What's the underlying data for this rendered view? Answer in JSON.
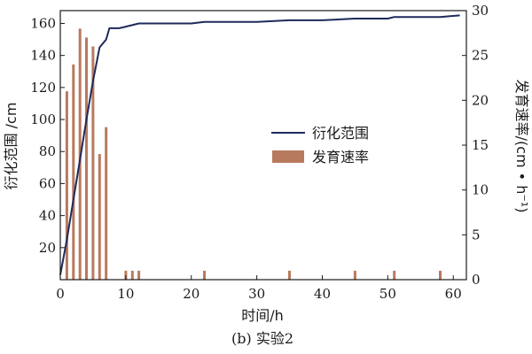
{
  "chart_data": {
    "type": "bar+line",
    "caption": "(b) 实验2",
    "xlabel": "时间/h",
    "ylabel_left": "衍化范围 /cm",
    "ylabel_right": "发育速率/(cm • h⁻¹)",
    "xlim": [
      0,
      62
    ],
    "ylim_left": [
      0,
      168
    ],
    "ylim_right": [
      0,
      30
    ],
    "x_ticks": [
      0,
      10,
      20,
      30,
      40,
      50,
      60
    ],
    "y_left_ticks": [
      20,
      40,
      60,
      80,
      100,
      120,
      140,
      160
    ],
    "y_right_ticks": [
      0,
      5,
      10,
      15,
      20,
      25,
      30
    ],
    "grid": false,
    "legend_position": "center-right",
    "series": [
      {
        "name": "衍化范围",
        "kind": "line",
        "axis": "left",
        "color": "#1f2a5a",
        "x": [
          0,
          1,
          2,
          3,
          4,
          5,
          6,
          7,
          7.5,
          9,
          10,
          12,
          20,
          22,
          30,
          35,
          40,
          45,
          50,
          51,
          58,
          61
        ],
        "y": [
          3,
          25,
          50,
          75,
          100,
          124,
          145,
          150,
          157,
          157,
          158,
          160,
          160,
          161,
          161,
          162,
          162,
          163,
          163,
          164,
          164,
          165
        ]
      },
      {
        "name": "发育速率",
        "kind": "bar",
        "axis": "right",
        "color": "#b87a5e",
        "x": [
          1,
          2,
          3,
          4,
          5,
          6,
          7,
          10,
          11,
          12,
          22,
          35,
          45,
          51,
          58
        ],
        "y": [
          21,
          24,
          28,
          27,
          26,
          14,
          17,
          1,
          1,
          1,
          1,
          1,
          1,
          1,
          1
        ]
      }
    ]
  }
}
